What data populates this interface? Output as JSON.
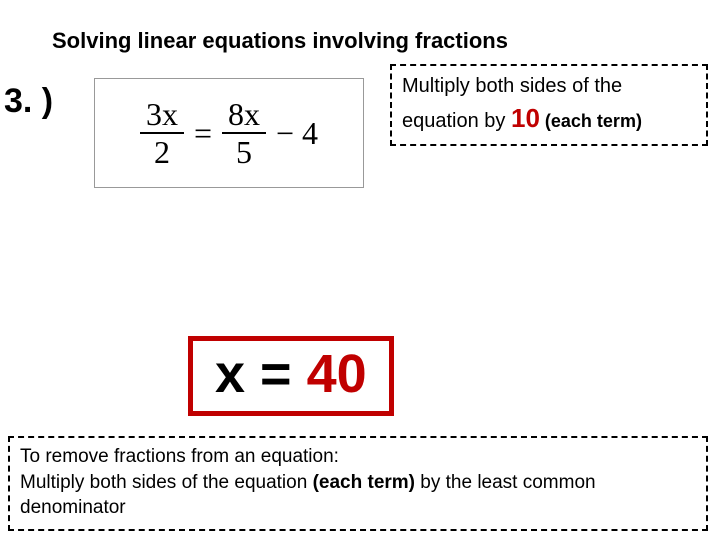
{
  "title": "Solving linear equations involving fractions",
  "problem_number": "3. )",
  "equation": {
    "frac1_num": "3x",
    "frac1_den": "2",
    "equals": "=",
    "frac2_num": "8x",
    "frac2_den": "5",
    "tail": "− 4"
  },
  "callout1": {
    "line1": "Multiply both sides of the",
    "line2_a": "equation by ",
    "highlight": "10",
    "line2_b": " (each term)"
  },
  "answer": {
    "lhs": "x = ",
    "value": "40"
  },
  "callout2": {
    "line1": "To remove fractions from an equation:",
    "line2_a": "Multiply both sides of the equation ",
    "bold": "(each term)",
    "line2_b": " by the least common",
    "line3": "denominator"
  },
  "colors": {
    "accent": "#c00000",
    "text": "#000000",
    "background": "#ffffff"
  }
}
